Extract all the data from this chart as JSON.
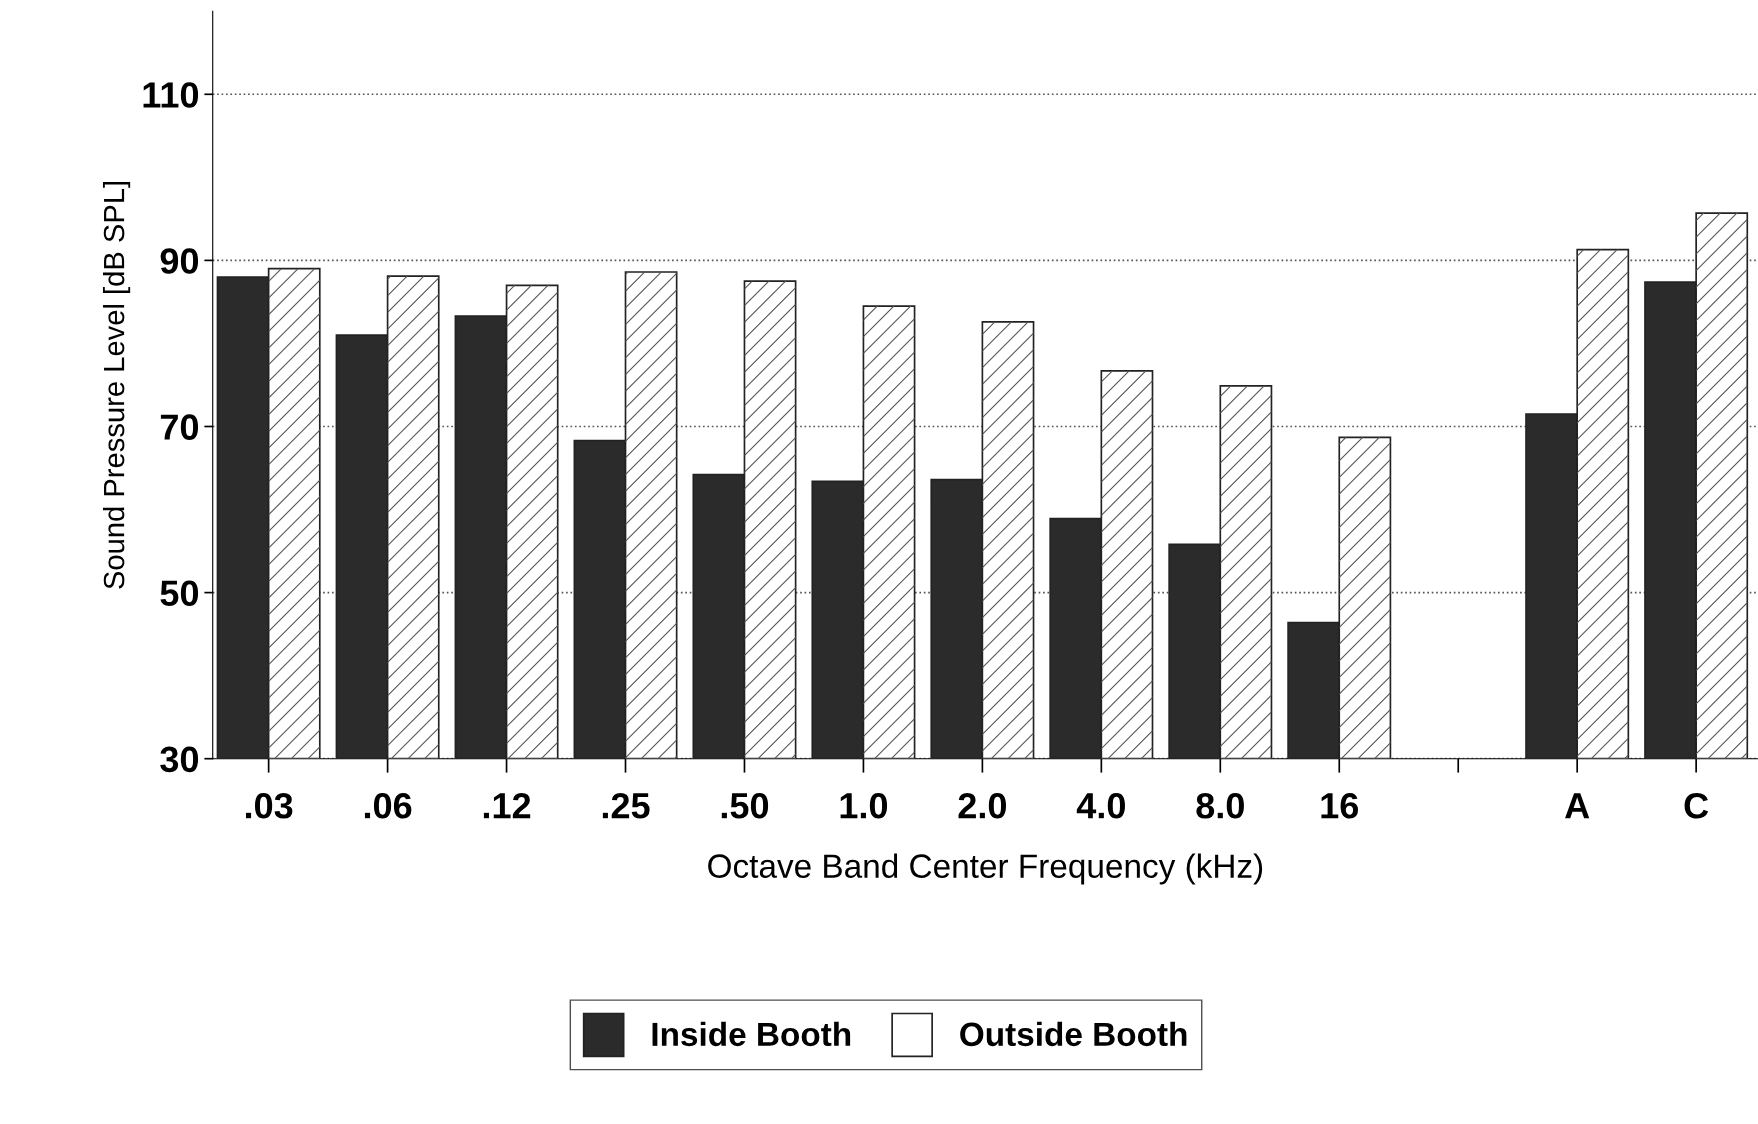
{
  "chart_data": {
    "type": "bar",
    "xlabel": "Octave Band Center Frequency (kHz)",
    "ylabel": "Sound Pressure Level [dB SPL]",
    "categories": [
      ".03",
      ".06",
      ".12",
      ".25",
      ".50",
      "1.0",
      "2.0",
      "4.0",
      "8.0",
      "16",
      null,
      "A",
      "C"
    ],
    "series": [
      {
        "name": "Inside Booth",
        "color": "#2b2b2b",
        "values": [
          88,
          81,
          83.3,
          68.3,
          64.2,
          63.4,
          63.6,
          58.9,
          55.8,
          46.4,
          null,
          71.5,
          87.4
        ]
      },
      {
        "name": "Outside Booth",
        "color": "#ffffff",
        "values": [
          89,
          88.1,
          87,
          88.6,
          87.5,
          84.5,
          82.6,
          76.7,
          74.9,
          68.7,
          null,
          91.3,
          95.7
        ]
      }
    ],
    "ylim": [
      30,
      120
    ],
    "yticks": [
      30,
      50,
      70,
      90,
      110
    ],
    "grid": "y",
    "legend": "bottom"
  }
}
